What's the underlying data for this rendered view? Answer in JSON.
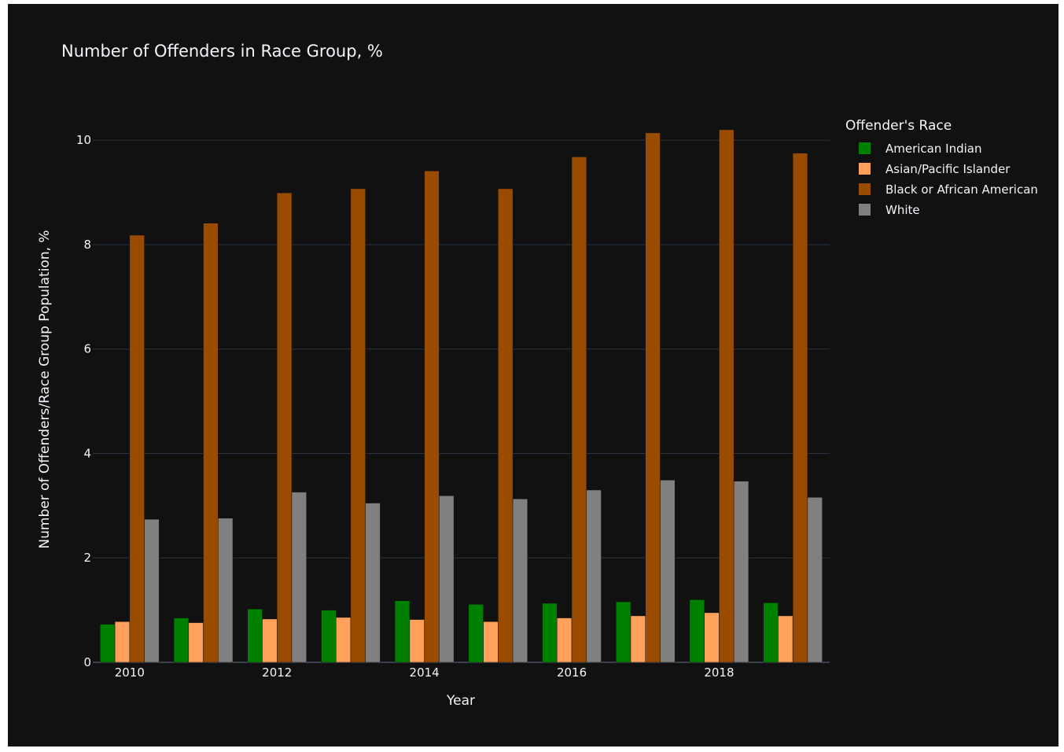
{
  "chart_data": {
    "type": "bar",
    "title": "Number of Offenders in Race Group, %",
    "xlabel": "Year",
    "ylabel": "Number of Offenders/Race Group Population, %",
    "x": [
      2010,
      2011,
      2012,
      2013,
      2014,
      2015,
      2016,
      2017,
      2018,
      2019
    ],
    "xtick_values": [
      2010,
      2012,
      2014,
      2016,
      2018
    ],
    "xtick_labels": [
      "2010",
      "2012",
      "2014",
      "2016",
      "2018"
    ],
    "ylim": [
      0,
      10.5
    ],
    "ytick_values": [
      0,
      2,
      4,
      6,
      8,
      10
    ],
    "ytick_labels": [
      "0",
      "2",
      "4",
      "6",
      "8",
      "10"
    ],
    "grid": true,
    "legend_title": "Offender's Race",
    "legend_position": "top-right outside",
    "series": [
      {
        "name": "American Indian",
        "color": "#008000",
        "values": [
          0.73,
          0.85,
          1.02,
          1.0,
          1.18,
          1.11,
          1.13,
          1.16,
          1.2,
          1.14
        ]
      },
      {
        "name": "Asian/Pacific Islander",
        "color": "#ffa15a",
        "values": [
          0.78,
          0.76,
          0.83,
          0.86,
          0.82,
          0.78,
          0.85,
          0.89,
          0.95,
          0.89
        ]
      },
      {
        "name": "Black or African American",
        "color": "#994c00",
        "values": [
          8.18,
          8.41,
          8.99,
          9.07,
          9.41,
          9.07,
          9.68,
          10.14,
          10.2,
          9.75
        ]
      },
      {
        "name": "White",
        "color": "#808080",
        "values": [
          2.74,
          2.76,
          3.26,
          3.05,
          3.19,
          3.13,
          3.3,
          3.49,
          3.47,
          3.16
        ]
      }
    ]
  }
}
